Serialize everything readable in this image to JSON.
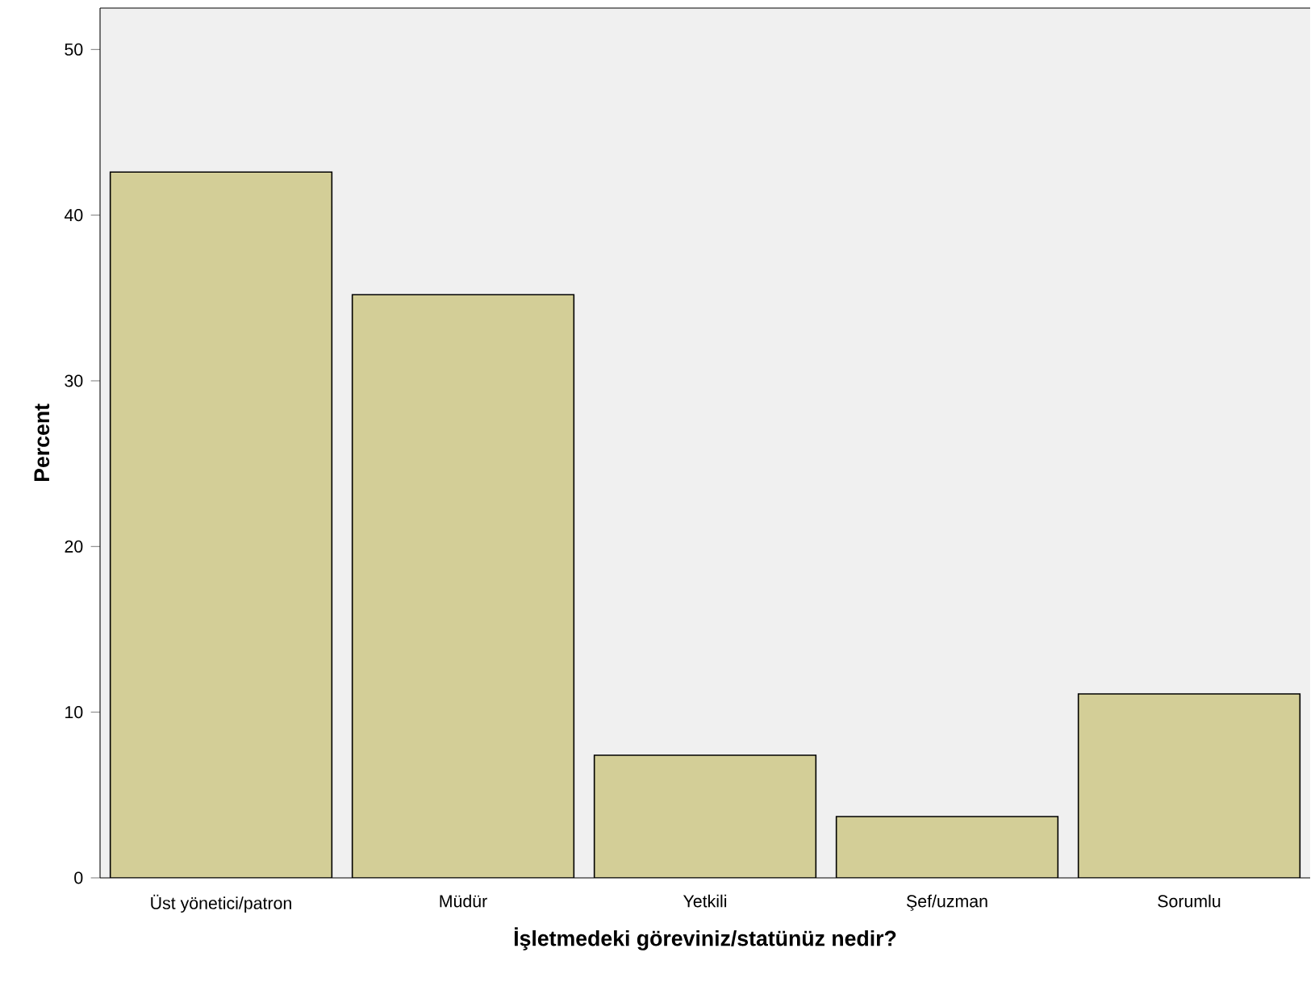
{
  "chart_data": {
    "type": "bar",
    "xlabel": "İşletmedeki göreviniz/statünüz nedir?",
    "ylabel": "Percent",
    "categories": [
      "Üst yönetici/patron",
      "Müdür",
      "Yetkili",
      "Şef/uzman",
      "Sorumlu"
    ],
    "values": [
      42.6,
      35.2,
      7.4,
      3.7,
      11.1
    ],
    "color": "#d3ce97",
    "ylim": [
      0,
      52.5
    ],
    "yticks": [
      0,
      10,
      20,
      30,
      40,
      50
    ],
    "grid": false
  }
}
